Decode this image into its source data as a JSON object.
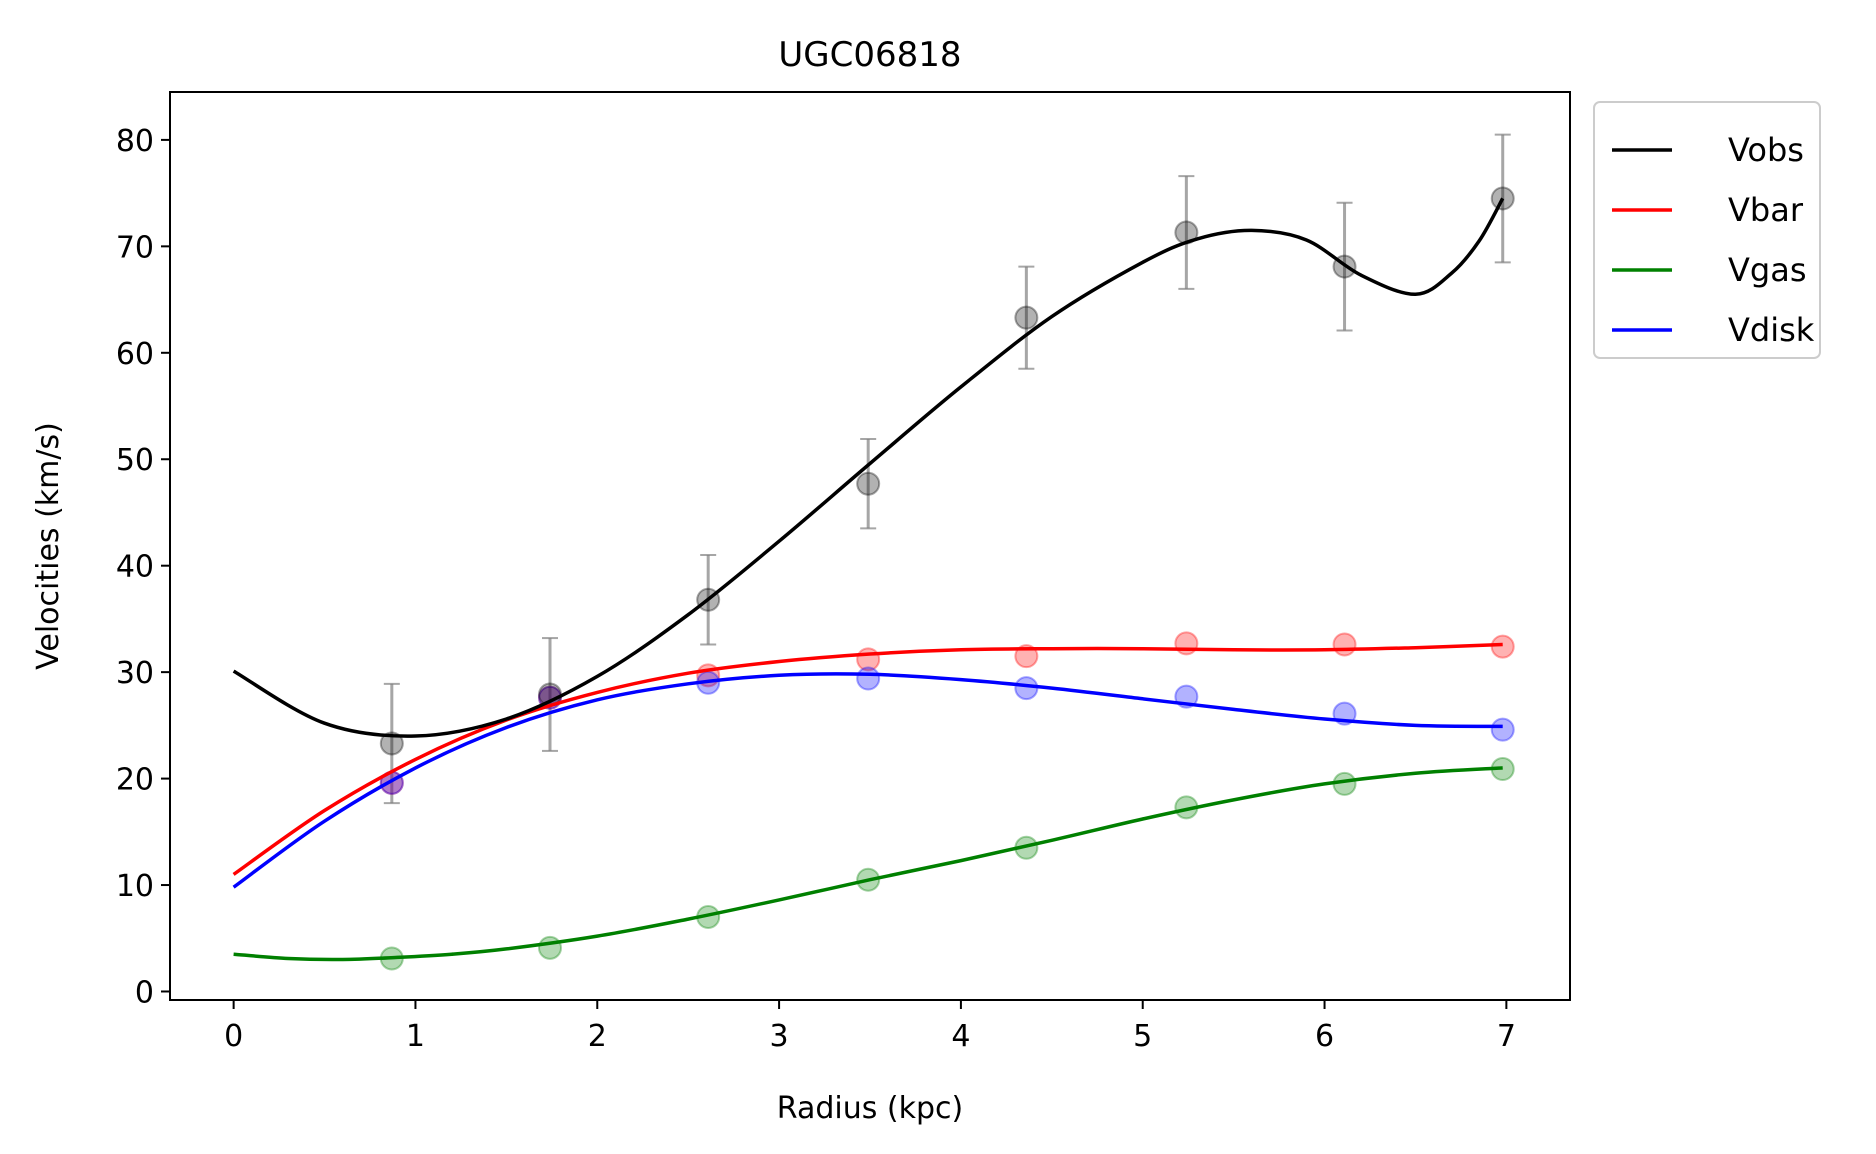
{
  "chart_data": {
    "type": "line",
    "title": "UGC06818",
    "xlabel": "Radius (kpc)",
    "ylabel": "Velocities (km/s)",
    "xlim": [
      -0.35,
      7.35
    ],
    "ylim": [
      -0.8,
      84.5
    ],
    "xticks": [
      0,
      1,
      2,
      3,
      4,
      5,
      6,
      7
    ],
    "yticks": [
      0,
      10,
      20,
      30,
      40,
      50,
      60,
      70,
      80
    ],
    "grid": false,
    "legend": {
      "placement": "outside upper right",
      "entries": [
        "Vobs",
        "Vbar",
        "Vgas",
        "Vdisk"
      ]
    },
    "points_x": [
      0.87,
      1.74,
      2.61,
      3.49,
      4.36,
      5.24,
      6.11,
      6.98
    ],
    "series": [
      {
        "name": "Vobs",
        "color": "#000000",
        "points": [
          23.3,
          27.9,
          36.8,
          47.7,
          63.3,
          71.3,
          68.1,
          74.5
        ],
        "errors": [
          5.6,
          5.3,
          4.2,
          4.2,
          4.8,
          5.3,
          6.0,
          6.0
        ],
        "curve_x": [
          0,
          0.5,
          1.0,
          1.5,
          2.0,
          2.5,
          3.0,
          3.5,
          4.0,
          4.5,
          5.0,
          5.3,
          5.6,
          5.9,
          6.2,
          6.5,
          6.7,
          6.85,
          6.98
        ],
        "curve_y": [
          30.1,
          25.2,
          24.0,
          25.6,
          29.6,
          35.4,
          42.3,
          49.6,
          56.8,
          63.4,
          68.5,
          70.7,
          71.5,
          70.6,
          67.3,
          65.5,
          67.5,
          70.5,
          74.5
        ]
      },
      {
        "name": "Vbar",
        "color": "#ff0000",
        "points": [
          19.6,
          27.6,
          29.7,
          31.2,
          31.5,
          32.7,
          32.6,
          32.4
        ],
        "curve_x": [
          0,
          0.5,
          1.0,
          1.5,
          2.0,
          2.5,
          3.0,
          3.5,
          4.0,
          4.5,
          5.0,
          5.5,
          6.0,
          6.5,
          6.98
        ],
        "curve_y": [
          11.0,
          17.0,
          21.8,
          25.5,
          28.1,
          29.9,
          31.0,
          31.7,
          32.1,
          32.2,
          32.2,
          32.1,
          32.1,
          32.3,
          32.6
        ]
      },
      {
        "name": "Vgas",
        "color": "#008000",
        "points": [
          3.1,
          4.1,
          7.0,
          10.5,
          13.5,
          17.3,
          19.5,
          20.9
        ],
        "curve_x": [
          0,
          0.3,
          0.6,
          0.9,
          1.2,
          1.5,
          2.0,
          2.5,
          3.0,
          3.5,
          4.0,
          4.5,
          5.0,
          5.5,
          6.0,
          6.5,
          6.98
        ],
        "curve_y": [
          3.5,
          3.1,
          3.0,
          3.2,
          3.5,
          4.0,
          5.2,
          6.8,
          8.6,
          10.5,
          12.3,
          14.2,
          16.2,
          18.0,
          19.5,
          20.5,
          21.0
        ]
      },
      {
        "name": "Vdisk",
        "color": "#0000ff",
        "points": [
          19.6,
          27.6,
          29.0,
          29.4,
          28.5,
          27.7,
          26.1,
          24.6
        ],
        "curve_x": [
          0,
          0.5,
          1.0,
          1.5,
          2.0,
          2.5,
          3.0,
          3.5,
          4.0,
          4.5,
          5.0,
          5.5,
          6.0,
          6.5,
          6.98
        ],
        "curve_y": [
          9.8,
          16.0,
          21.0,
          24.8,
          27.4,
          28.9,
          29.7,
          29.8,
          29.3,
          28.5,
          27.5,
          26.5,
          25.6,
          25.0,
          24.9
        ]
      }
    ]
  }
}
